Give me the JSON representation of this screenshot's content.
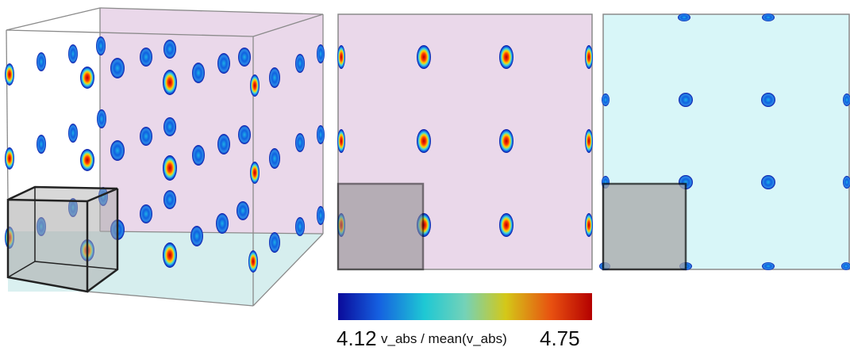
{
  "colorbar": {
    "label": "v_abs / mean(v_abs)",
    "min": "4.12",
    "max": "4.75",
    "stops": [
      "#0a0a9a",
      "#1560e0",
      "#1ec8d4",
      "#74d2b8",
      "#d4c818",
      "#e85010",
      "#b40000"
    ]
  },
  "colors": {
    "pink_face": "#ead8ea",
    "cyan_face": "#d8f6f8",
    "cyan_floor": "#d6eeee",
    "gray_box": "#a8a8a8",
    "frame": "#8a8a8a"
  },
  "panels": [
    "3d-view",
    "front-xy-slice",
    "top-slice"
  ]
}
